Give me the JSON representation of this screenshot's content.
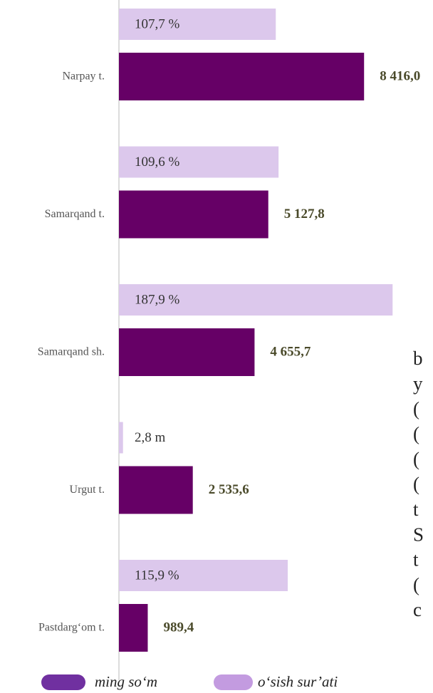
{
  "chart_data": {
    "type": "bar",
    "categories": [
      "Narpay t.",
      "Samarqand t.",
      "Samarqand sh.",
      "Urgut t.",
      "Pastdarg‘om t."
    ],
    "series": [
      {
        "name": "ming so‘m",
        "color": "#660066",
        "values": [
          8416.0,
          5127.8,
          4655.7,
          2535.6,
          989.4
        ],
        "value_labels": [
          "8 416,0",
          "5 127,8",
          "4 655,7",
          "2 535,6",
          "989,4"
        ]
      },
      {
        "name": "o‘sish sur’ati",
        "color": "#dcc8ec",
        "axis": "x2",
        "values": [
          107.7,
          109.6,
          187.9,
          2.8,
          115.9
        ],
        "value_labels": [
          "107,7 %",
          "109,6 %",
          "187,9 %",
          "2,8 m",
          "115,9 %"
        ]
      }
    ],
    "legend_colors": [
      "#7030a0",
      "#c39be0"
    ],
    "xlim": [
      0,
      10000
    ],
    "x2lim": [
      0,
      200
    ]
  },
  "side_text": [
    "b",
    "y",
    "(",
    "(",
    "(",
    "(",
    "t",
    "S",
    "t",
    "(",
    "c"
  ]
}
